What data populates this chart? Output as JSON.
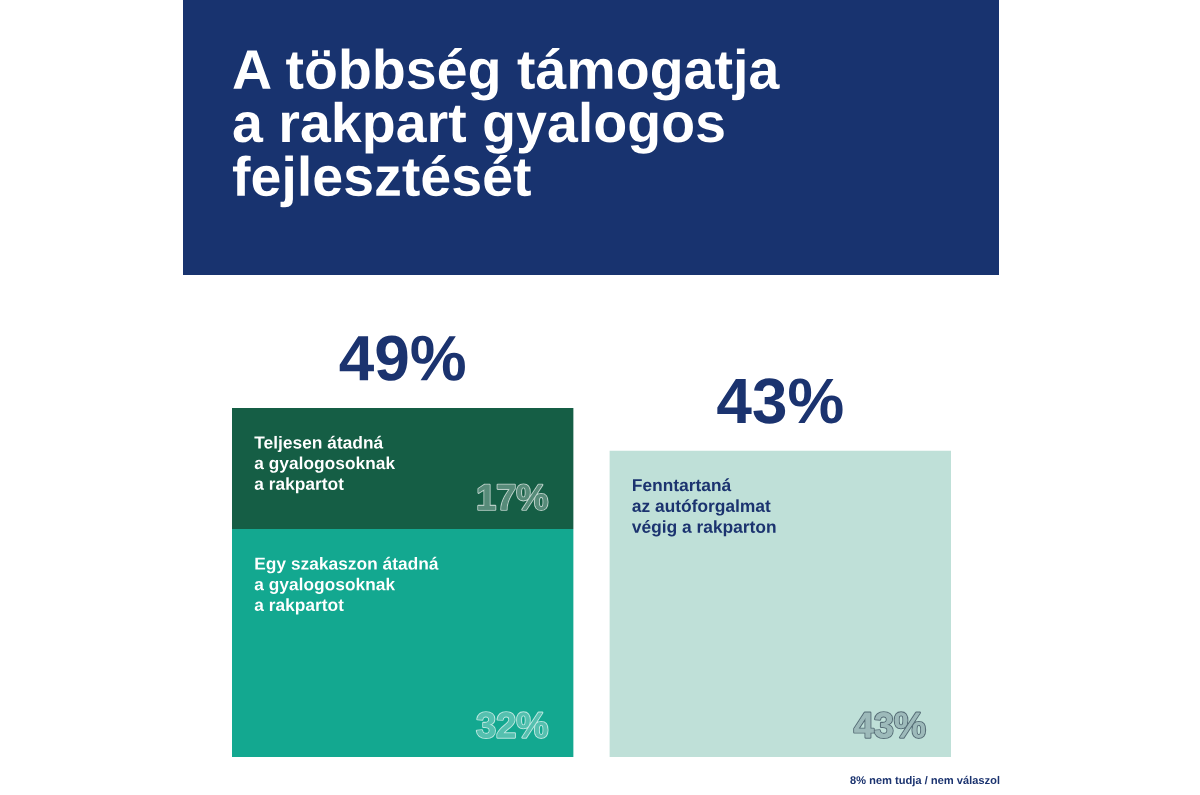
{
  "chart_data": {
    "type": "bar",
    "title": "A többség támogatja\na rakpart gyalogos\nfejlesztését",
    "categories": [
      null,
      null
    ],
    "stacked": true,
    "tick_labels": false,
    "series": [
      {
        "name": "Egy szakaszon átadná\na gyalogosoknak\na rakpartot",
        "color": "#13a890",
        "values": [
          32,
          null
        ],
        "value_labels": [
          "32%",
          null
        ]
      },
      {
        "name": "Teljesen átadná\na gyalogosoknak\na rakpartot",
        "color": "#155e45",
        "values": [
          17,
          null
        ],
        "value_labels": [
          "17%",
          null
        ]
      },
      {
        "name": "Fenntartaná\naz autóforgalmat\nvégig a rakparton",
        "color": "#bfe0d8",
        "values": [
          null,
          43
        ],
        "value_labels": [
          null,
          "43%"
        ]
      }
    ],
    "totals": [
      "49%",
      "43%"
    ],
    "annotations": [
      "8% nem tudja / nem válaszol"
    ]
  }
}
